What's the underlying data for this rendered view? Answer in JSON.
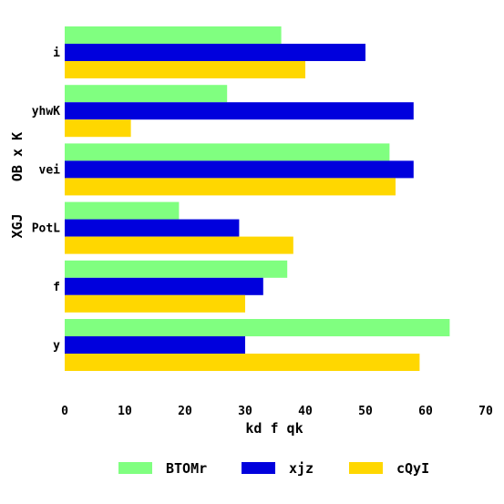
{
  "chart_data": {
    "type": "bar",
    "orientation": "horizontal",
    "categories": [
      "i",
      "yhwK",
      "vei",
      "PotL",
      "f",
      "y"
    ],
    "series": [
      {
        "name": "BTOMr",
        "color": "#80ff80",
        "values": [
          36,
          27,
          54,
          19,
          37,
          64
        ]
      },
      {
        "name": "xjz",
        "color": "#0000dd",
        "values": [
          50,
          58,
          58,
          29,
          33,
          30
        ]
      },
      {
        "name": "cQyI",
        "color": "#ffd700",
        "values": [
          40,
          11,
          55,
          38,
          30,
          59
        ]
      }
    ],
    "xlabel": "kd f qk",
    "ylabel_lines": [
      "XGJ",
      "OB x K"
    ],
    "xlim": [
      0,
      70
    ],
    "xticks": [
      0,
      10,
      20,
      30,
      40,
      50,
      60,
      70
    ],
    "grid": false,
    "legend_position": "bottom"
  }
}
